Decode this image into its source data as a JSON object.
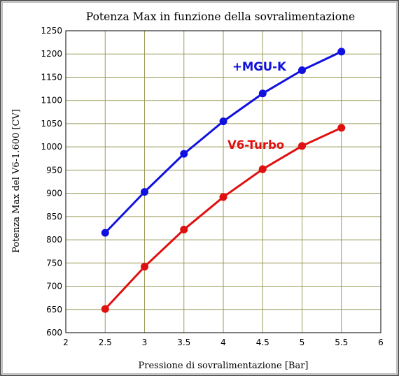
{
  "chart_data": {
    "type": "line",
    "title": "Potenza Max in funzione della sovralimentazione",
    "xlabel": "Pressione di sovralimentazione  [Bar]",
    "ylabel": "Potenza Max del V6-1.600  [CV]",
    "xlim": [
      2,
      6
    ],
    "ylim": [
      600,
      1250
    ],
    "x_ticks": [
      "2",
      "2.5",
      "3",
      "3.5",
      "4",
      "4.5",
      "5",
      "5.5",
      "6"
    ],
    "y_ticks": [
      "600",
      "650",
      "700",
      "750",
      "800",
      "850",
      "900",
      "950",
      "1000",
      "1050",
      "1100",
      "1150",
      "1200",
      "1250"
    ],
    "grid": true,
    "x": [
      2.5,
      3,
      3.5,
      4,
      4.5,
      5,
      5.5
    ],
    "series": [
      {
        "name": "+MGU-K",
        "color": "#1010e0",
        "values": [
          815,
          903,
          985,
          1055,
          1115,
          1165,
          1205
        ]
      },
      {
        "name": "V6-Turbo",
        "color": "#e01010",
        "values": [
          651,
          742,
          822,
          892,
          952,
          1002,
          1041
        ]
      }
    ],
    "grid_color": "#9a9a5a"
  }
}
